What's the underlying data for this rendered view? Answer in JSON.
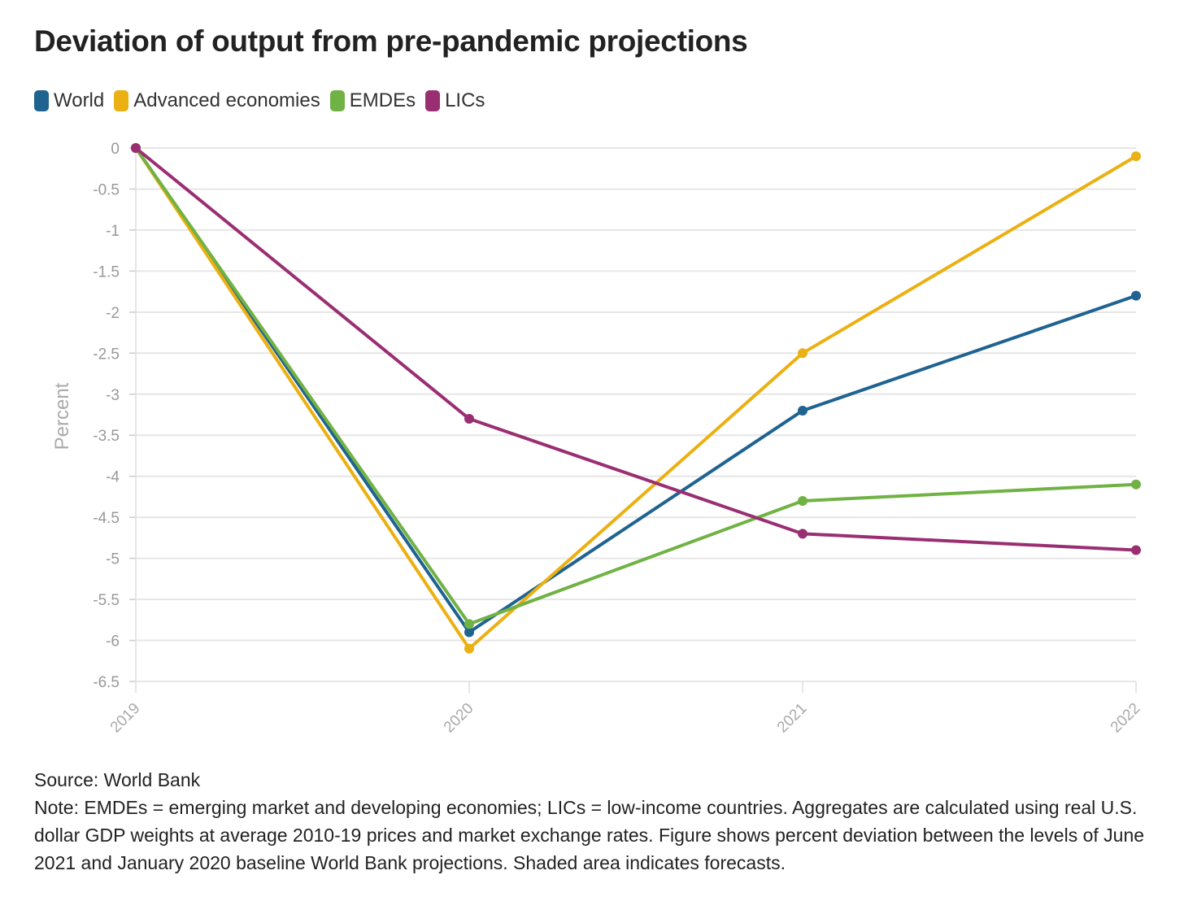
{
  "chart_data": {
    "type": "line",
    "title": "Deviation of output from pre-pandemic projections",
    "xlabel": "",
    "ylabel": "Percent",
    "x": [
      "2019",
      "2020",
      "2021",
      "2022"
    ],
    "ylim": [
      -6.5,
      0
    ],
    "yticks": [
      "0",
      "-0.5",
      "-1",
      "-1.5",
      "-2",
      "-2.5",
      "-3",
      "-3.5",
      "-4",
      "-4.5",
      "-5",
      "-5.5",
      "-6",
      "-6.5"
    ],
    "grid": true,
    "legend_placement": "top-left",
    "series": [
      {
        "name": "World",
        "color": "#1f6391",
        "values": [
          0,
          -5.9,
          -3.2,
          -1.8
        ]
      },
      {
        "name": "Advanced economies",
        "color": "#ebb011",
        "values": [
          0,
          -6.1,
          -2.5,
          -0.1
        ]
      },
      {
        "name": "EMDEs",
        "color": "#71b244",
        "values": [
          0,
          -5.8,
          -4.3,
          -4.1
        ]
      },
      {
        "name": "LICs",
        "color": "#992f72",
        "values": [
          0,
          -3.3,
          -4.7,
          -4.9
        ]
      }
    ]
  },
  "source": "Source: World Bank",
  "note": "Note: EMDEs = emerging market and developing economies; LICs = low-income countries. Aggregates are calculated using real U.S. dollar GDP weights at average 2010-19 prices and market exchange rates. Figure shows percent deviation between the levels of June 2021 and January 2020 baseline World Bank projections. Shaded area indicates forecasts."
}
